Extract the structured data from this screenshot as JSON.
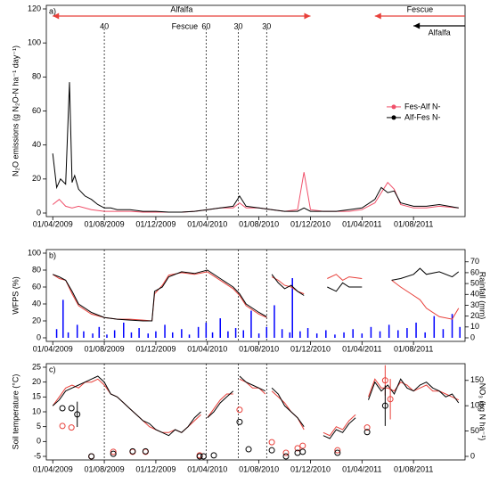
{
  "chart_data": [
    {
      "type": "line",
      "label": "a)",
      "ylabel": "N₂O emissions (g N₂O-N ha⁻¹ day⁻¹)",
      "xlim": [
        -0.5,
        32
      ],
      "xticks": [
        {
          "value": 0,
          "label": "01/04/2009"
        },
        {
          "value": 4,
          "label": "01/08/2009"
        },
        {
          "value": 8,
          "label": "01/12/2009"
        },
        {
          "value": 12,
          "label": "01/04/2010"
        },
        {
          "value": 16,
          "label": "01/08/2010"
        },
        {
          "value": 20,
          "label": "01/12/2010"
        },
        {
          "value": 24,
          "label": "01/04/2011"
        },
        {
          "value": 28,
          "label": "01/08/2011"
        }
      ],
      "ylim": [
        0,
        120
      ],
      "yticks": [
        0,
        20,
        40,
        60,
        80,
        100,
        120
      ],
      "legend": "right",
      "vlines": [
        {
          "x": 4,
          "label": "40"
        },
        {
          "x": 11.9,
          "label": "60"
        },
        {
          "x": 14.4,
          "label": "30"
        },
        {
          "x": 16.6,
          "label": "30"
        }
      ],
      "annotations": [
        "Fescue"
      ],
      "periods": [
        {
          "label": "Alfalfa",
          "color": "#e8403a",
          "start": 0,
          "end": 20
        },
        {
          "label": "Fescue",
          "color": "#e8403a",
          "start": 25,
          "end": 32
        },
        {
          "label": "Alfalfa",
          "color": "#000000",
          "start": 28,
          "end": 32
        }
      ],
      "series": [
        {
          "name": "Fes-Alf N-",
          "color": "#f0506a",
          "x": [
            0,
            0.5,
            1,
            1.5,
            2,
            3,
            4,
            5,
            6,
            7,
            8,
            9,
            10,
            11,
            12,
            13,
            14,
            14.5,
            15,
            16,
            17,
            18,
            19,
            19.5,
            20,
            21,
            22,
            23,
            24,
            25,
            25.5,
            26,
            26.5,
            27,
            28,
            29,
            30,
            31.5
          ],
          "values": [
            5,
            8,
            4,
            3,
            4,
            2,
            1,
            1,
            1,
            0.5,
            0.5,
            0.5,
            0.5,
            1,
            2,
            3,
            3,
            6,
            3,
            3,
            2,
            1,
            2,
            24,
            2,
            1,
            1,
            1,
            2,
            6,
            12,
            18,
            14,
            5,
            3,
            3,
            4,
            3
          ]
        },
        {
          "name": "Alf-Fes N-",
          "color": "#000000",
          "x": [
            0,
            0.3,
            0.6,
            1,
            1.3,
            1.5,
            1.7,
            2,
            2.5,
            3,
            3.5,
            4,
            4.5,
            5,
            6,
            7,
            8,
            9,
            10,
            11,
            12,
            13,
            14,
            14.5,
            15,
            16,
            17,
            18,
            19,
            19.5,
            20,
            21,
            22,
            23,
            24,
            25,
            25.5,
            26,
            26.5,
            27,
            28,
            29,
            30,
            31.5
          ],
          "values": [
            35,
            15,
            20,
            17,
            77,
            18,
            22,
            14,
            10,
            8,
            5,
            3,
            3,
            2,
            2,
            1,
            1,
            0.5,
            0.5,
            1,
            2,
            3,
            4,
            10,
            4,
            3,
            2,
            1,
            1,
            3,
            1,
            1,
            1,
            2,
            3,
            8,
            15,
            12,
            13,
            6,
            4,
            4,
            5,
            3
          ]
        }
      ]
    },
    {
      "type": "line",
      "label": "b)",
      "ylabel": "WFPS (%)",
      "y2label": "Rainfall (mm)",
      "xlim": [
        -0.5,
        32
      ],
      "xticks": [
        {
          "value": 0,
          "label": "01/04/2009"
        },
        {
          "value": 4,
          "label": "01/08/2009"
        },
        {
          "value": 8,
          "label": "01/12/2009"
        },
        {
          "value": 12,
          "label": "01/04/2010"
        },
        {
          "value": 16,
          "label": "01/08/2010"
        },
        {
          "value": 20,
          "label": "01/12/2010"
        },
        {
          "value": 24,
          "label": "01/04/2011"
        },
        {
          "value": 28,
          "label": "01/08/2011"
        }
      ],
      "ylim": [
        0,
        100
      ],
      "yticks": [
        0,
        20,
        40,
        60,
        80,
        100
      ],
      "y2lim": [
        0,
        78
      ],
      "y2ticks": [
        0,
        10,
        20,
        30,
        40,
        50,
        60,
        70
      ],
      "vlines": [
        {
          "x": 4
        },
        {
          "x": 11.9
        },
        {
          "x": 14.4
        },
        {
          "x": 16.6
        }
      ],
      "series": [
        {
          "color": "#0000ff",
          "mark": "bar",
          "axis": "y2",
          "x": [
            0.3,
            0.8,
            1.2,
            1.9,
            2.4,
            3.1,
            3.6,
            4.2,
            4.8,
            5.5,
            6.1,
            6.7,
            7.4,
            8,
            8.7,
            9.3,
            10,
            10.6,
            11.3,
            11.9,
            12.4,
            13,
            13.6,
            14.2,
            14.8,
            15.4,
            16,
            16.6,
            17.2,
            17.8,
            18.4,
            18.6,
            19.2,
            19.8,
            20.5,
            21.2,
            21.9,
            22.6,
            23.3,
            24,
            24.7,
            25.4,
            26.1,
            26.8,
            27.5,
            28.2,
            28.9,
            29.6,
            30.3,
            31,
            31.6
          ],
          "values": [
            8,
            35,
            5,
            12,
            6,
            4,
            10,
            3,
            7,
            14,
            5,
            9,
            4,
            6,
            12,
            5,
            8,
            3,
            10,
            14,
            5,
            18,
            6,
            9,
            7,
            25,
            4,
            10,
            30,
            8,
            5,
            55,
            6,
            9,
            4,
            7,
            3,
            5,
            8,
            4,
            10,
            6,
            12,
            7,
            9,
            14,
            5,
            20,
            8,
            22,
            10
          ]
        },
        {
          "color": "#e8403a",
          "x": [
            0,
            0.5,
            1,
            1.5,
            2,
            3,
            4,
            5,
            6,
            7,
            7.7,
            7.9,
            8.5,
            9,
            10,
            11,
            12,
            13,
            14,
            14.5,
            15,
            16,
            16.6,
            16.8,
            17,
            17.5,
            18,
            18.5,
            19,
            19.5,
            20,
            21.3,
            22,
            22.5,
            23,
            24,
            24.5,
            26.3,
            27,
            28,
            28.5,
            29,
            30,
            31,
            31.5
          ],
          "values": [
            75,
            70,
            68,
            52,
            38,
            28,
            24,
            22,
            22,
            21,
            20,
            52,
            62,
            74,
            77,
            75,
            78,
            68,
            58,
            50,
            38,
            28,
            24,
            null,
            72,
            68,
            62,
            60,
            55,
            52,
            null,
            70,
            75,
            68,
            72,
            70,
            null,
            68,
            60,
            50,
            45,
            35,
            25,
            22,
            35
          ]
        },
        {
          "color": "#000000",
          "x": [
            0,
            0.5,
            1,
            1.5,
            2,
            3,
            4,
            5,
            6,
            7,
            7.7,
            7.9,
            8.5,
            9,
            10,
            11,
            12,
            13,
            14,
            14.5,
            15,
            16,
            16.6,
            16.8,
            17,
            17.5,
            18,
            18.5,
            19,
            19.5,
            20,
            21.3,
            22,
            22.5,
            23,
            24,
            24.5,
            26.3,
            27,
            28,
            28.5,
            29,
            30,
            31,
            31.5
          ],
          "values": [
            75,
            72,
            68,
            55,
            40,
            30,
            24,
            22,
            21,
            20,
            20,
            55,
            60,
            72,
            78,
            76,
            80,
            70,
            60,
            52,
            40,
            30,
            25,
            null,
            75,
            65,
            58,
            62,
            55,
            50,
            null,
            60,
            55,
            65,
            60,
            60,
            null,
            68,
            70,
            75,
            82,
            75,
            78,
            72,
            78
          ]
        }
      ]
    },
    {
      "type": "line",
      "label": "c)",
      "ylabel": "Soil temperature (°C)",
      "y2label": "NO₃ (kg N ha⁻¹)",
      "xlim": [
        -0.5,
        32
      ],
      "xticks": [
        {
          "value": 0,
          "label": "01/04/2009"
        },
        {
          "value": 4,
          "label": "01/08/2009"
        },
        {
          "value": 8,
          "label": "01/12/2009"
        },
        {
          "value": 12,
          "label": "01/04/2010"
        },
        {
          "value": 16,
          "label": "01/08/2010"
        },
        {
          "value": 20,
          "label": "01/12/2010"
        },
        {
          "value": 24,
          "label": "01/04/2011"
        },
        {
          "value": 28,
          "label": "01/08/2011"
        }
      ],
      "ylim": [
        -5,
        25
      ],
      "yticks": [
        -5,
        0,
        5,
        10,
        15,
        20,
        25
      ],
      "y2lim": [
        0,
        176
      ],
      "y2ticks": [
        0,
        50,
        100,
        150
      ],
      "vlines": [
        {
          "x": 4
        },
        {
          "x": 11.9
        },
        {
          "x": 14.4
        },
        {
          "x": 16.6
        }
      ],
      "series": [
        {
          "color": "#e8403a",
          "x": [
            0,
            0.5,
            1,
            1.5,
            2,
            2.5,
            3,
            3.5,
            4,
            4.5,
            5,
            5.5,
            6,
            6.5,
            7,
            7.5,
            8,
            8.5,
            9,
            9.5,
            10,
            10.5,
            11,
            11.5,
            11.8,
            12,
            12.5,
            13,
            13.5,
            14,
            14.3,
            14.5,
            15,
            15.5,
            16,
            16.5,
            16.8,
            17,
            17.5,
            18,
            18.5,
            19,
            19.5,
            20,
            21,
            21.5,
            22,
            22.5,
            23,
            23.5,
            24,
            24.5,
            25,
            25.5,
            26,
            26.5,
            27,
            27.5,
            28,
            28.5,
            29,
            29.5,
            30,
            30.5,
            31,
            31.5
          ],
          "values": [
            12,
            15,
            18,
            19,
            18,
            20,
            20,
            21,
            19,
            16,
            15,
            13,
            11,
            9,
            7,
            5,
            4,
            3,
            3,
            4,
            3,
            5,
            7,
            9,
            null,
            8,
            11,
            14,
            16,
            16,
            null,
            21,
            20,
            18,
            18,
            16,
            null,
            17,
            15,
            13,
            10,
            8,
            4,
            null,
            3,
            2,
            5,
            4,
            7,
            9,
            null,
            15,
            21,
            18,
            18,
            17,
            20,
            19,
            17,
            18,
            19,
            17,
            17,
            16,
            15,
            14
          ]
        },
        {
          "color": "#000000",
          "x": [
            0,
            0.5,
            1,
            1.5,
            2,
            2.5,
            3,
            3.5,
            4,
            4.5,
            5,
            5.5,
            6,
            6.5,
            7,
            7.5,
            8,
            8.5,
            9,
            9.5,
            10,
            10.5,
            11,
            11.5,
            11.8,
            12,
            12.5,
            13,
            13.5,
            14,
            14.3,
            14.5,
            15,
            15.5,
            16,
            16.5,
            16.8,
            17,
            17.5,
            18,
            18.5,
            19,
            19.5,
            20,
            21,
            21.5,
            22,
            22.5,
            23,
            23.5,
            24,
            24.5,
            25,
            25.5,
            26,
            26.5,
            27,
            27.5,
            28,
            28.5,
            29,
            29.5,
            30,
            30.5,
            31,
            31.5
          ],
          "values": [
            12,
            14,
            17,
            18,
            19,
            20,
            21,
            22,
            20,
            16,
            15,
            13,
            11,
            9,
            7,
            6,
            4,
            3,
            2,
            4,
            3,
            5,
            8,
            10,
            null,
            8,
            10,
            13,
            15,
            17,
            null,
            22,
            20,
            19,
            18,
            17,
            null,
            18,
            16,
            12,
            10,
            8,
            5,
            null,
            2,
            1,
            4,
            3,
            6,
            8,
            null,
            14,
            20,
            17,
            19,
            16,
            21,
            18,
            17,
            19,
            20,
            18,
            17,
            15,
            16,
            13
          ]
        },
        {
          "color": "#e8403a",
          "mark": "circle",
          "axis": "y2",
          "x": [
            0.75,
            1.45,
            3,
            4.7,
            6.2,
            7.2,
            11.4,
            14.5,
            17,
            18.1,
            19,
            19.4,
            22.1,
            24.4,
            25.8,
            26.2
          ],
          "values": [
            60,
            57,
            0,
            9,
            9,
            9,
            2,
            92,
            28,
            7,
            16,
            21,
            12,
            57,
            150,
            113
          ],
          "errors": [
            null,
            null,
            null,
            null,
            null,
            null,
            null,
            null,
            null,
            null,
            null,
            null,
            null,
            null,
            30,
            40
          ]
        },
        {
          "color": "#000000",
          "mark": "circle",
          "axis": "y2",
          "x": [
            0.75,
            1.45,
            1.9,
            3,
            4.7,
            6.2,
            7.2,
            11.4,
            11.7,
            12.5,
            14.5,
            15.2,
            17,
            18.1,
            19,
            19.4,
            22.1,
            24.4,
            25.8
          ],
          "values": [
            95,
            95,
            83,
            0,
            5,
            10,
            10,
            0,
            0,
            2,
            68,
            14,
            12,
            0,
            7,
            9,
            7,
            48,
            100
          ],
          "errors": [
            null,
            null,
            25,
            null,
            null,
            null,
            null,
            null,
            null,
            null,
            null,
            null,
            null,
            null,
            null,
            null,
            null,
            null,
            40
          ]
        }
      ]
    }
  ]
}
